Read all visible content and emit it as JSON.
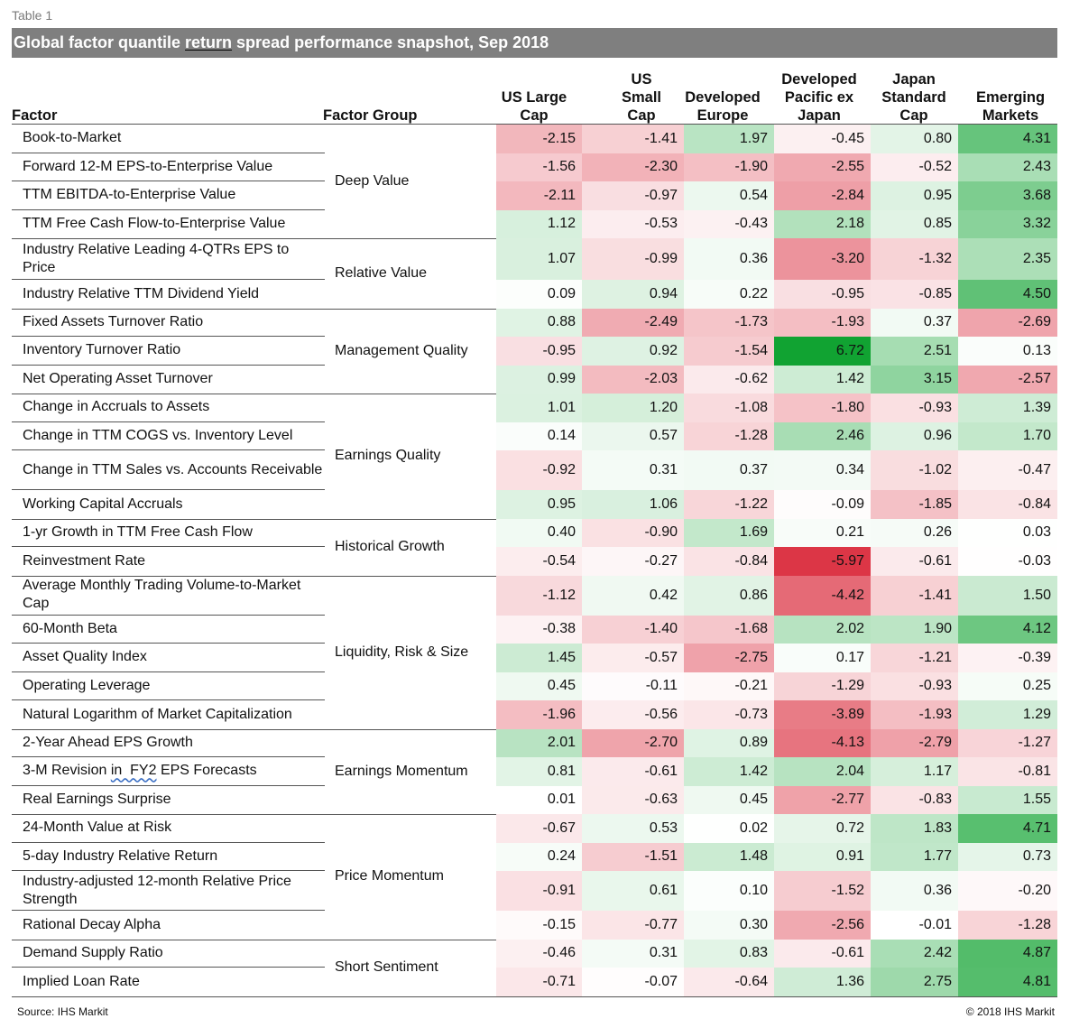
{
  "table_label": "Table 1",
  "title": {
    "prefix": "Global factor quantile ",
    "underlined": "return",
    "suffix": " spread performance snapshot, Sep 2018"
  },
  "headers": {
    "factor": "Factor",
    "factor_group": "Factor Group",
    "columns": [
      [
        "US Large",
        "Cap"
      ],
      [
        "US",
        "Small",
        "Cap"
      ],
      [
        "Developed",
        "Europe"
      ],
      [
        "Developed",
        "Pacific ex",
        "Japan"
      ],
      [
        "Japan",
        "Standard",
        "Cap"
      ],
      [
        "Emerging",
        "Markets"
      ]
    ]
  },
  "colors": {
    "negative_strong": "#dc3545",
    "positive_strong": "#11a332",
    "neutral": "#ffffff",
    "title_bar": "#7f7f7f"
  },
  "chart_data": {
    "type": "heatmap",
    "title": "Global factor quantile return spread performance snapshot, Sep 2018",
    "columns": [
      "US Large Cap",
      "US Small Cap",
      "Developed Europe",
      "Developed Pacific ex Japan",
      "Japan Standard Cap",
      "Emerging Markets"
    ],
    "groups": [
      {
        "name": "Deep Value",
        "rows": [
          {
            "factor": "Book-to-Market",
            "values": [
              "-2.15",
              "-1.41",
              "1.97",
              "-0.45",
              "0.80",
              "4.31"
            ]
          },
          {
            "factor": "Forward 12-M EPS-to-Enterprise Value",
            "values": [
              "-1.56",
              "-2.30",
              "-1.90",
              "-2.55",
              "-0.52",
              "2.43"
            ]
          },
          {
            "factor": "TTM EBITDA-to-Enterprise Value",
            "values": [
              "-2.11",
              "-0.97",
              "0.54",
              "-2.84",
              "0.95",
              "3.68"
            ]
          },
          {
            "factor": "TTM Free Cash Flow-to-Enterprise Value",
            "values": [
              "1.12",
              "-0.53",
              "-0.43",
              "2.18",
              "0.85",
              "3.32"
            ]
          }
        ]
      },
      {
        "name": "Relative Value",
        "rows": [
          {
            "factor": "Industry Relative Leading 4-QTRs EPS to Price",
            "values": [
              "1.07",
              "-0.99",
              "0.36",
              "-3.20",
              "-1.32",
              "2.35"
            ]
          },
          {
            "factor": "Industry Relative TTM Dividend Yield",
            "values": [
              "0.09",
              "0.94",
              "0.22",
              "-0.95",
              "-0.85",
              "4.50"
            ]
          }
        ]
      },
      {
        "name": "Management Quality",
        "rows": [
          {
            "factor": "Fixed Assets Turnover Ratio",
            "values": [
              "0.88",
              "-2.49",
              "-1.73",
              "-1.93",
              "0.37",
              "-2.69"
            ]
          },
          {
            "factor": "Inventory Turnover Ratio",
            "values": [
              "-0.95",
              "0.92",
              "-1.54",
              "6.72",
              "2.51",
              "0.13"
            ]
          },
          {
            "factor": "Net Operating Asset Turnover",
            "values": [
              "0.99",
              "-2.03",
              "-0.62",
              "1.42",
              "3.15",
              "-2.57"
            ]
          }
        ]
      },
      {
        "name": "Earnings Quality",
        "rows": [
          {
            "factor": "Change in Accruals to Assets",
            "values": [
              "1.01",
              "1.20",
              "-1.08",
              "-1.80",
              "-0.93",
              "1.39"
            ]
          },
          {
            "factor": "Change in TTM COGS vs. Inventory Level",
            "values": [
              "0.14",
              "0.57",
              "-1.28",
              "2.46",
              "0.96",
              "1.70"
            ]
          },
          {
            "factor": "Change in TTM Sales vs. Accounts Receivable",
            "values": [
              "-0.92",
              "0.31",
              "0.37",
              "0.34",
              "-1.02",
              "-0.47"
            ]
          },
          {
            "factor": "Working Capital Accruals",
            "values": [
              "0.95",
              "1.06",
              "-1.22",
              "-0.09",
              "-1.85",
              "-0.84"
            ]
          }
        ]
      },
      {
        "name": "Historical Growth",
        "rows": [
          {
            "factor": "1-yr Growth in TTM Free Cash Flow",
            "values": [
              "0.40",
              "-0.90",
              "1.69",
              "0.21",
              "0.26",
              "0.03"
            ]
          },
          {
            "factor": "Reinvestment Rate",
            "values": [
              "-0.54",
              "-0.27",
              "-0.84",
              "-5.97",
              "-0.61",
              "-0.03"
            ]
          }
        ]
      },
      {
        "name": "Liquidity, Risk & Size",
        "rows": [
          {
            "factor": "Average Monthly Trading Volume-to-Market Cap",
            "values": [
              "-1.12",
              "0.42",
              "0.86",
              "-4.42",
              "-1.41",
              "1.50"
            ]
          },
          {
            "factor": "60-Month Beta",
            "values": [
              "-0.38",
              "-1.40",
              "-1.68",
              "2.02",
              "1.90",
              "4.12"
            ]
          },
          {
            "factor": "Asset Quality Index",
            "values": [
              "1.45",
              "-0.57",
              "-2.75",
              "0.17",
              "-1.21",
              "-0.39"
            ]
          },
          {
            "factor": "Operating Leverage",
            "values": [
              "0.45",
              "-0.11",
              "-0.21",
              "-1.29",
              "-0.93",
              "0.25"
            ]
          },
          {
            "factor": "Natural Logarithm of Market Capitalization",
            "values": [
              "-1.96",
              "-0.56",
              "-0.73",
              "-3.89",
              "-1.93",
              "1.29"
            ]
          }
        ]
      },
      {
        "name": "Earnings Momentum",
        "rows": [
          {
            "factor": "2-Year Ahead EPS Growth",
            "values": [
              "2.01",
              "-2.70",
              "0.89",
              "-4.13",
              "-2.79",
              "-1.27"
            ]
          },
          {
            "factor": "3-M Revision in  FY2 EPS Forecasts",
            "values": [
              "0.81",
              "-0.61",
              "1.42",
              "2.04",
              "1.17",
              "-0.81"
            ]
          },
          {
            "factor": "Real Earnings Surprise",
            "values": [
              "0.01",
              "-0.63",
              "0.45",
              "-2.77",
              "-0.83",
              "1.55"
            ]
          }
        ]
      },
      {
        "name": "Price Momentum",
        "rows": [
          {
            "factor": "24-Month Value at Risk",
            "values": [
              "-0.67",
              "0.53",
              "0.02",
              "0.72",
              "1.83",
              "4.71"
            ]
          },
          {
            "factor": "5-day Industry Relative Return",
            "values": [
              "0.24",
              "-1.51",
              "1.48",
              "0.91",
              "1.77",
              "0.73"
            ]
          },
          {
            "factor": "Industry-adjusted 12-month Relative Price Strength",
            "values": [
              "-0.91",
              "0.61",
              "0.10",
              "-1.52",
              "0.36",
              "-0.20"
            ]
          },
          {
            "factor": "Rational Decay Alpha",
            "values": [
              "-0.15",
              "-0.77",
              "0.30",
              "-2.56",
              "-0.01",
              "-1.28"
            ]
          }
        ]
      },
      {
        "name": "Short Sentiment",
        "rows": [
          {
            "factor": "Demand Supply Ratio",
            "values": [
              "-0.46",
              "0.31",
              "0.83",
              "-0.61",
              "2.42",
              "4.87"
            ]
          },
          {
            "factor": "Implied Loan Rate",
            "values": [
              "-0.71",
              "-0.07",
              "-0.64",
              "1.36",
              "2.75",
              "4.81"
            ]
          }
        ]
      }
    ]
  },
  "footer": {
    "source": "Source: IHS Markit",
    "copyright": "© 2018 IHS Markit"
  }
}
